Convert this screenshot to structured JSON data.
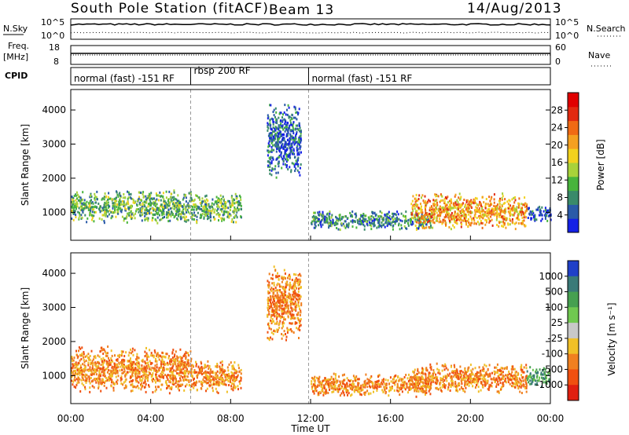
{
  "header": {
    "station": "South Pole Station (fitACF)",
    "beam": "Beam 13",
    "date": "14/Aug/2013"
  },
  "side_labels": {
    "nsky": "N.Sky",
    "freq": "Freq.",
    "freq_unit": "[MHz]",
    "cpid": "CPID",
    "nsearch": "N.Search",
    "nave": "Nave",
    "exp_left_top": "10^5",
    "exp_left_bottom": "10^0",
    "exp_right_top": "10^5",
    "exp_right_bottom": "10^0",
    "freq_top": "18",
    "freq_bottom": "8",
    "nave_top": "60",
    "nave_bottom": "0"
  },
  "cpid_modes": [
    {
      "label": "normal (fast) -151 RF",
      "start_h": 0,
      "end_h": 6
    },
    {
      "label": "rbsp 200 RF",
      "start_h": 6,
      "end_h": 11.9
    },
    {
      "label": "normal (fast) -151 RF",
      "start_h": 11.9,
      "end_h": 24
    }
  ],
  "x_axis": {
    "label": "Time UT",
    "ticks": [
      "00:00",
      "04:00",
      "08:00",
      "12:00",
      "16:00",
      "20:00",
      "00:00"
    ],
    "range_h": [
      0,
      24
    ]
  },
  "panels": {
    "power": {
      "ylabel": "Slant Range [km]",
      "yticks": [
        "1000",
        "2000",
        "3000",
        "4000"
      ],
      "colorbar_label": "Power [dB]",
      "colorbar_ticks": [
        "4",
        "8",
        "12",
        "16",
        "20",
        "24",
        "28"
      ],
      "colorbar_colors": [
        "#1420e6",
        "#2a5aa8",
        "#3a8a6a",
        "#48b43c",
        "#a8d23a",
        "#f2d21e",
        "#f4a020",
        "#f06a14",
        "#e22a10",
        "#e00000"
      ]
    },
    "velocity": {
      "ylabel": "Slant Range [km]",
      "yticks": [
        "1000",
        "2000",
        "3000",
        "4000"
      ],
      "colorbar_label": "Velocity [m s⁻¹]",
      "colorbar_ticks": [
        "1000",
        "500",
        "100",
        "25",
        "-25",
        "-100",
        "-500",
        "-1000"
      ],
      "colorbar_colors": [
        "#2040c8",
        "#3a7a78",
        "#46a050",
        "#70c850",
        "#c8c8c8",
        "#f0c028",
        "#f08020",
        "#f05010",
        "#e02010"
      ]
    }
  },
  "chart_data": [
    {
      "type": "heatmap",
      "title": "Power",
      "xlabel": "Time UT",
      "ylabel": "Slant Range [km]",
      "xlim_h": [
        0,
        24
      ],
      "ylim_km": [
        180,
        4600
      ],
      "colorbar": {
        "label": "Power [dB]",
        "range": [
          0,
          30
        ]
      },
      "echo_regions": [
        {
          "start_h": 0.0,
          "end_h": 6.0,
          "range_km": [
            700,
            1700
          ],
          "typical_db": 10
        },
        {
          "start_h": 6.0,
          "end_h": 8.5,
          "range_km": [
            700,
            1600
          ],
          "typical_db": 8
        },
        {
          "start_h": 9.8,
          "end_h": 11.5,
          "range_km": [
            2000,
            4300
          ],
          "typical_db": 4
        },
        {
          "start_h": 12.0,
          "end_h": 18.0,
          "range_km": [
            500,
            1100
          ],
          "typical_db": 6
        },
        {
          "start_h": 17.0,
          "end_h": 22.8,
          "range_km": [
            500,
            1600
          ],
          "typical_db": 18
        },
        {
          "start_h": 22.8,
          "end_h": 24.0,
          "range_km": [
            700,
            1200
          ],
          "typical_db": 4
        }
      ]
    },
    {
      "type": "heatmap",
      "title": "Velocity",
      "xlabel": "Time UT",
      "ylabel": "Slant Range [km]",
      "xlim_h": [
        0,
        24
      ],
      "ylim_km": [
        180,
        4600
      ],
      "colorbar": {
        "label": "Velocity [m s⁻¹]",
        "range": [
          -1000,
          1000
        ]
      },
      "echo_regions": [
        {
          "start_h": 0.0,
          "end_h": 6.0,
          "range_km": [
            500,
            1900
          ],
          "typical_ms": -150
        },
        {
          "start_h": 6.0,
          "end_h": 8.5,
          "range_km": [
            500,
            1500
          ],
          "typical_ms": -150
        },
        {
          "start_h": 9.8,
          "end_h": 11.5,
          "range_km": [
            2000,
            4300
          ],
          "typical_ms": -300
        },
        {
          "start_h": 12.0,
          "end_h": 18.0,
          "range_km": [
            400,
            1100
          ],
          "typical_ms": -400
        },
        {
          "start_h": 17.0,
          "end_h": 22.8,
          "range_km": [
            500,
            1400
          ],
          "typical_ms": -120
        },
        {
          "start_h": 22.8,
          "end_h": 24.0,
          "range_km": [
            700,
            1300
          ],
          "typical_ms": 60
        }
      ]
    }
  ]
}
